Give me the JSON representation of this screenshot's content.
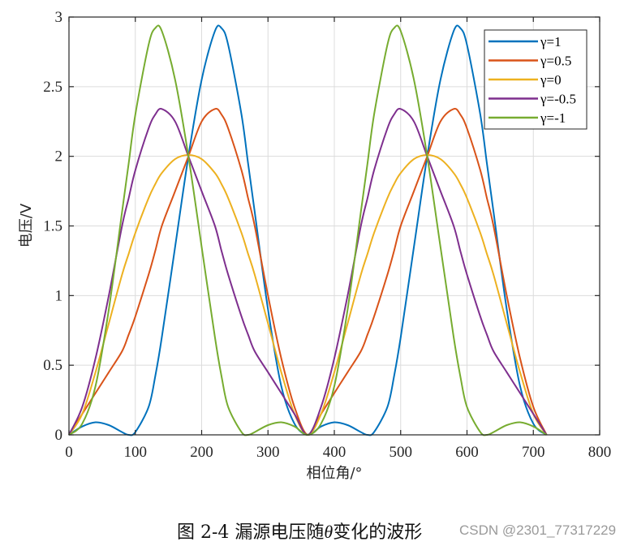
{
  "chart_data": {
    "type": "line",
    "title": "",
    "xlabel": "相位角/°",
    "ylabel": "电压/V",
    "xlim": [
      0,
      800
    ],
    "ylim": [
      0,
      3
    ],
    "xticks": [
      0,
      100,
      200,
      300,
      400,
      500,
      600,
      700,
      800
    ],
    "yticks": [
      0,
      0.5,
      1,
      1.5,
      2,
      2.5,
      3
    ],
    "xtick_labels": [
      "0",
      "100",
      "200",
      "300",
      "400",
      "500",
      "600",
      "700",
      "800"
    ],
    "ytick_labels": [
      "0",
      "0.5",
      "1",
      "1.5",
      "2",
      "2.5",
      "3"
    ],
    "grid": true,
    "legend_position": "upper right",
    "period_deg": 360,
    "x_end": 720,
    "x_base": [
      0,
      20,
      40,
      60,
      80,
      90,
      100,
      120,
      130,
      140,
      160,
      180,
      200,
      220,
      230,
      240,
      260,
      270,
      280,
      300,
      320,
      340,
      360
    ],
    "series": [
      {
        "name": "γ=1",
        "color": "#0072BD",
        "values": [
          0,
          0.06,
          0.09,
          0.07,
          0.02,
          0,
          0.02,
          0.2,
          0.42,
          0.7,
          1.35,
          2.0,
          2.55,
          2.9,
          2.92,
          2.8,
          2.3,
          1.95,
          1.6,
          0.9,
          0.35,
          0.08,
          0
        ]
      },
      {
        "name": "γ=0.5",
        "color": "#D95319",
        "values": [
          0,
          0.15,
          0.3,
          0.45,
          0.6,
          0.72,
          0.85,
          1.15,
          1.32,
          1.5,
          1.75,
          2.0,
          2.25,
          2.34,
          2.3,
          2.2,
          1.9,
          1.7,
          1.5,
          1.0,
          0.55,
          0.2,
          0
        ]
      },
      {
        "name": "γ=0",
        "color": "#EDB120",
        "values": [
          0,
          0.15,
          0.45,
          0.8,
          1.15,
          1.3,
          1.45,
          1.7,
          1.8,
          1.88,
          1.98,
          2.01,
          1.98,
          1.88,
          1.8,
          1.7,
          1.45,
          1.3,
          1.15,
          0.8,
          0.45,
          0.15,
          0
        ]
      },
      {
        "name": "γ=-0.5",
        "color": "#7E2F8E",
        "values": [
          0,
          0.2,
          0.55,
          1.0,
          1.5,
          1.7,
          1.9,
          2.2,
          2.3,
          2.34,
          2.25,
          2.0,
          1.75,
          1.5,
          1.32,
          1.15,
          0.85,
          0.72,
          0.6,
          0.45,
          0.3,
          0.15,
          0
        ]
      },
      {
        "name": "γ=-1",
        "color": "#77AC30",
        "values": [
          0,
          0.08,
          0.35,
          0.9,
          1.6,
          1.95,
          2.3,
          2.8,
          2.92,
          2.9,
          2.55,
          2.0,
          1.35,
          0.7,
          0.42,
          0.2,
          0.02,
          0,
          0.02,
          0.07,
          0.09,
          0.06,
          0
        ]
      }
    ]
  },
  "caption": {
    "prefix": "图 2-4  漏源电压随",
    "symbol": "θ",
    "suffix": "变化的波形"
  },
  "watermark": "CSDN @2301_77317229"
}
